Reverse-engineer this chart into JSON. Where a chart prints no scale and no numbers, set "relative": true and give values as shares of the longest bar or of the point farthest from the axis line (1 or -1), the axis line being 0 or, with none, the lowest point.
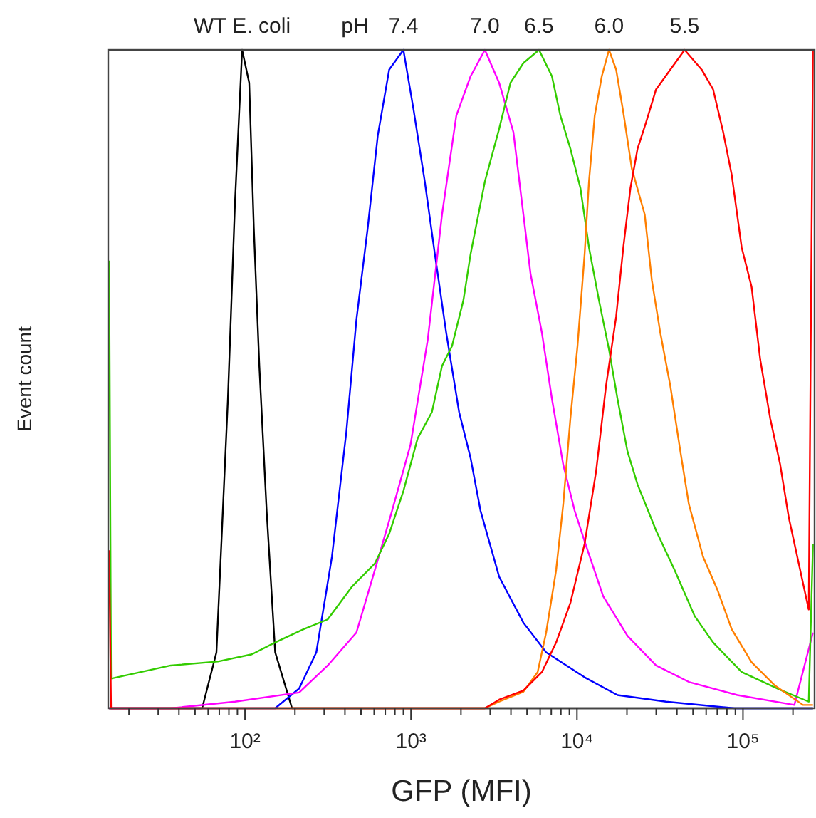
{
  "chart_data": {
    "type": "line",
    "relative": true,
    "xlabel": "GFP (MFI)",
    "ylabel": "Event count",
    "log": "x",
    "xlim": [
      15,
      270000
    ],
    "xticks": [
      {
        "value": 20,
        "label": null
      },
      {
        "value": 30,
        "label": null
      },
      {
        "value": 40,
        "label": null
      },
      {
        "value": 50,
        "label": null
      },
      {
        "value": 60,
        "label": null
      },
      {
        "value": 70,
        "label": null
      },
      {
        "value": 80,
        "label": null
      },
      {
        "value": 90,
        "label": null
      },
      {
        "value": 100,
        "label": "10²"
      },
      {
        "value": 200,
        "label": null
      },
      {
        "value": 300,
        "label": null
      },
      {
        "value": 400,
        "label": null
      },
      {
        "value": 500,
        "label": null
      },
      {
        "value": 600,
        "label": null
      },
      {
        "value": 700,
        "label": null
      },
      {
        "value": 800,
        "label": null
      },
      {
        "value": 900,
        "label": null
      },
      {
        "value": 1000,
        "label": "10³"
      },
      {
        "value": 2000,
        "label": null
      },
      {
        "value": 3000,
        "label": null
      },
      {
        "value": 4000,
        "label": null
      },
      {
        "value": 5000,
        "label": null
      },
      {
        "value": 6000,
        "label": null
      },
      {
        "value": 7000,
        "label": null
      },
      {
        "value": 8000,
        "label": null
      },
      {
        "value": 9000,
        "label": null
      },
      {
        "value": 10000,
        "label": "10⁴"
      },
      {
        "value": 20000,
        "label": null
      },
      {
        "value": 30000,
        "label": null
      },
      {
        "value": 40000,
        "label": null
      },
      {
        "value": 50000,
        "label": null
      },
      {
        "value": 60000,
        "label": null
      },
      {
        "value": 70000,
        "label": null
      },
      {
        "value": 80000,
        "label": null
      },
      {
        "value": 90000,
        "label": null
      },
      {
        "value": 100000,
        "label": "10⁵"
      },
      {
        "value": 200000,
        "label": null
      }
    ],
    "annotations": [
      "pH"
    ],
    "series": [
      {
        "name": "WT E. coli",
        "color": "#000000",
        "x": [
          15.2,
          55.2,
          67.3,
          78.9,
          87.1,
          96.1,
          106,
          113,
          122,
          135,
          152,
          192,
          264000
        ],
        "values": [
          0,
          0,
          0.085,
          0.47,
          0.77,
          1.0,
          0.95,
          0.73,
          0.52,
          0.3,
          0.085,
          0,
          0
        ]
      },
      {
        "name": "7.4",
        "color": "#0000ff",
        "x": [
          15.2,
          152,
          212,
          269,
          334,
          408,
          469,
          549,
          631,
          739,
          900,
          1035,
          1211,
          1392,
          1631,
          1949,
          2286,
          2624,
          3394,
          4754,
          6521,
          11120,
          17540,
          34430,
          88920,
          264000
        ],
        "values": [
          0,
          0,
          0.03,
          0.085,
          0.23,
          0.42,
          0.59,
          0.73,
          0.87,
          0.97,
          1.0,
          0.91,
          0.8,
          0.69,
          0.57,
          0.45,
          0.38,
          0.3,
          0.2,
          0.13,
          0.085,
          0.047,
          0.02,
          0.01,
          0,
          0
        ]
      },
      {
        "name": "7.0",
        "color": "#ff00ff",
        "x": [
          15.2,
          35.7,
          87,
          212,
          315,
          469,
          606,
          769,
          993,
          1262,
          1538,
          1875,
          2286,
          2787,
          3397,
          4140,
          4755,
          5250,
          6150,
          7065,
          8265,
          9685,
          11580,
          14390,
          20150,
          29950,
          47200,
          92500,
          204000,
          264000
        ],
        "values": [
          0,
          0,
          0.01,
          0.024,
          0.065,
          0.115,
          0.21,
          0.3,
          0.4,
          0.56,
          0.75,
          0.9,
          0.96,
          1.0,
          0.95,
          0.875,
          0.75,
          0.66,
          0.57,
          0.47,
          0.37,
          0.3,
          0.24,
          0.17,
          0.11,
          0.065,
          0.04,
          0.02,
          0.005,
          0.115
        ]
      },
      {
        "name": "6.5",
        "color": "#33cc00",
        "x": [
          15.2,
          15.6,
          35.7,
          68.7,
          110,
          152,
          225,
          315,
          442,
          606,
          739,
          900,
          1097,
          1337,
          1538,
          1766,
          2070,
          2286,
          2787,
          3397,
          3975,
          4755,
          5905,
          7065,
          7945,
          9125,
          10490,
          11810,
          13560,
          15590,
          17540,
          20150,
          23170,
          29950,
          38720,
          51170,
          66070,
          98200,
          167600,
          249000,
          264000
        ],
        "values": [
          0.68,
          0.045,
          0.065,
          0.071,
          0.082,
          0.1,
          0.12,
          0.135,
          0.185,
          0.22,
          0.265,
          0.33,
          0.41,
          0.45,
          0.52,
          0.55,
          0.62,
          0.69,
          0.8,
          0.88,
          0.95,
          0.98,
          1.0,
          0.96,
          0.9,
          0.85,
          0.79,
          0.7,
          0.62,
          0.545,
          0.47,
          0.39,
          0.34,
          0.27,
          0.21,
          0.14,
          0.1,
          0.055,
          0.028,
          0.01,
          0.25
        ]
      },
      {
        "name": "6.0",
        "color": "#ff7f00",
        "x": [
          15.2,
          2787,
          3397,
          4755,
          5795,
          6520,
          7490,
          8265,
          9125,
          10070,
          11120,
          11810,
          12790,
          14110,
          15590,
          17220,
          19020,
          21390,
          25590,
          28250,
          31780,
          36480,
          41970,
          47200,
          57500,
          70150,
          85550,
          112700,
          155000,
          230000,
          264000
        ],
        "values": [
          0,
          0,
          0.01,
          0.025,
          0.055,
          0.115,
          0.21,
          0.31,
          0.44,
          0.55,
          0.69,
          0.8,
          0.9,
          0.96,
          1.0,
          0.97,
          0.905,
          0.82,
          0.75,
          0.65,
          0.57,
          0.49,
          0.39,
          0.31,
          0.23,
          0.18,
          0.12,
          0.07,
          0.035,
          0.005,
          0.005
        ]
      },
      {
        "name": "5.5",
        "color": "#ff0000",
        "x": [
          15.2,
          15.6,
          2787,
          3397,
          4755,
          6150,
          7490,
          9125,
          11120,
          13040,
          14970,
          17220,
          19020,
          20990,
          23170,
          26080,
          29950,
          36480,
          44500,
          56400,
          66070,
          76010,
          85550,
          98200,
          112700,
          127000,
          146000,
          167600,
          188700,
          230000,
          249000,
          264000
        ],
        "values": [
          0.24,
          0,
          0,
          0.013,
          0.027,
          0.055,
          0.1,
          0.16,
          0.25,
          0.36,
          0.49,
          0.595,
          0.7,
          0.79,
          0.85,
          0.89,
          0.94,
          0.97,
          1.0,
          0.97,
          0.94,
          0.875,
          0.81,
          0.7,
          0.64,
          0.53,
          0.44,
          0.37,
          0.29,
          0.19,
          0.15,
          1.0
        ]
      }
    ]
  }
}
